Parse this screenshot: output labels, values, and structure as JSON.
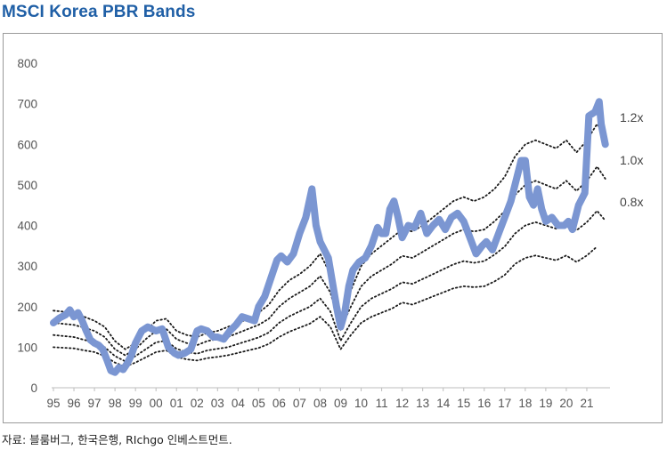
{
  "title": "MSCI Korea PBR Bands",
  "source": "자료: 블룸버그, 한국은행, RIchgo 인베스트먼트.",
  "chart_data": {
    "type": "line",
    "title": "MSCI Korea PBR Bands",
    "ylim": [
      0,
      800
    ],
    "yticks": [
      0,
      100,
      200,
      300,
      400,
      500,
      600,
      700,
      800
    ],
    "xlim": [
      1995,
      2022
    ],
    "xtick_labels": [
      "95",
      "96",
      "97",
      "98",
      "99",
      "00",
      "01",
      "02",
      "03",
      "04",
      "05",
      "06",
      "07",
      "08",
      "09",
      "10",
      "11",
      "12",
      "13",
      "14",
      "15",
      "16",
      "17",
      "18",
      "19",
      "20",
      "21"
    ],
    "grid": false,
    "colors": {
      "index": "#7b96d2",
      "band": "#1a1a1a"
    },
    "series": [
      {
        "name": "",
        "style": "thick-solid",
        "x": [
          1995.0,
          1995.3,
          1995.6,
          1995.8,
          1996.0,
          1996.2,
          1996.4,
          1996.6,
          1996.8,
          1997.0,
          1997.2,
          1997.4,
          1997.6,
          1997.8,
          1998.0,
          1998.2,
          1998.4,
          1998.6,
          1998.8,
          1999.0,
          1999.3,
          1999.6,
          1999.8,
          2000.0,
          2000.3,
          2000.6,
          2000.9,
          2001.1,
          2001.4,
          2001.7,
          2002.0,
          2002.2,
          2002.5,
          2002.8,
          2003.0,
          2003.3,
          2003.6,
          2003.9,
          2004.2,
          2004.5,
          2004.8,
          2005.0,
          2005.3,
          2005.6,
          2005.9,
          2006.1,
          2006.4,
          2006.7,
          2007.0,
          2007.3,
          2007.6,
          2007.8,
          2008.0,
          2008.2,
          2008.4,
          2008.6,
          2008.8,
          2009.0,
          2009.2,
          2009.4,
          2009.6,
          2009.9,
          2010.2,
          2010.5,
          2010.8,
          2011.0,
          2011.2,
          2011.4,
          2011.6,
          2011.8,
          2012.0,
          2012.3,
          2012.6,
          2012.9,
          2013.2,
          2013.5,
          2013.8,
          2014.1,
          2014.4,
          2014.7,
          2015.0,
          2015.3,
          2015.6,
          2015.9,
          2016.1,
          2016.4,
          2016.7,
          2017.0,
          2017.3,
          2017.6,
          2017.8,
          2018.0,
          2018.2,
          2018.4,
          2018.6,
          2018.8,
          2019.0,
          2019.3,
          2019.6,
          2019.9,
          2020.1,
          2020.3,
          2020.6,
          2020.9,
          2021.1,
          2021.4,
          2021.6,
          2021.7,
          2021.9
        ],
        "y": [
          160,
          172,
          180,
          192,
          175,
          185,
          165,
          140,
          118,
          110,
          105,
          95,
          70,
          42,
          38,
          50,
          45,
          60,
          80,
          110,
          140,
          150,
          145,
          140,
          145,
          100,
          85,
          80,
          85,
          95,
          140,
          145,
          140,
          125,
          125,
          120,
          140,
          155,
          175,
          170,
          165,
          200,
          225,
          270,
          315,
          325,
          310,
          330,
          380,
          420,
          490,
          400,
          360,
          340,
          320,
          260,
          200,
          150,
          185,
          250,
          290,
          310,
          320,
          350,
          395,
          380,
          380,
          440,
          460,
          420,
          370,
          400,
          395,
          430,
          380,
          400,
          415,
          390,
          420,
          430,
          410,
          370,
          330,
          350,
          360,
          340,
          380,
          420,
          460,
          520,
          560,
          560,
          470,
          450,
          490,
          440,
          410,
          420,
          400,
          400,
          410,
          390,
          450,
          480,
          670,
          680,
          705,
          650,
          600
        ]
      },
      {
        "name": "1.2x",
        "style": "dotted",
        "x": [
          1995.0,
          1996.0,
          1996.5,
          1997.0,
          1997.5,
          1998.0,
          1998.5,
          1999.0,
          1999.5,
          2000.0,
          2000.5,
          2001.0,
          2001.5,
          2002.0,
          2002.5,
          2003.0,
          2003.5,
          2004.0,
          2004.5,
          2005.0,
          2005.5,
          2006.0,
          2006.5,
          2007.0,
          2007.5,
          2008.0,
          2008.5,
          2009.0,
          2009.5,
          2010.0,
          2010.5,
          2011.0,
          2011.5,
          2012.0,
          2012.5,
          2013.0,
          2013.5,
          2014.0,
          2014.5,
          2015.0,
          2015.5,
          2016.0,
          2016.5,
          2017.0,
          2017.5,
          2018.0,
          2018.5,
          2019.0,
          2019.5,
          2020.0,
          2020.5,
          2021.0,
          2021.5,
          2021.9
        ],
        "y": [
          190,
          185,
          175,
          165,
          150,
          115,
          95,
          110,
          140,
          165,
          170,
          140,
          130,
          125,
          135,
          140,
          150,
          160,
          170,
          185,
          205,
          240,
          265,
          280,
          300,
          330,
          280,
          170,
          240,
          300,
          330,
          350,
          370,
          390,
          385,
          400,
          420,
          440,
          460,
          470,
          460,
          470,
          490,
          520,
          570,
          600,
          610,
          600,
          590,
          610,
          580,
          610,
          650,
          620
        ]
      },
      {
        "name": "1.0x",
        "style": "dotted",
        "x": [
          1995.0,
          1996.0,
          1996.5,
          1997.0,
          1997.5,
          1998.0,
          1998.5,
          1999.0,
          1999.5,
          2000.0,
          2000.5,
          2001.0,
          2001.5,
          2002.0,
          2002.5,
          2003.0,
          2003.5,
          2004.0,
          2004.5,
          2005.0,
          2005.5,
          2006.0,
          2006.5,
          2007.0,
          2007.5,
          2008.0,
          2008.5,
          2009.0,
          2009.5,
          2010.0,
          2010.5,
          2011.0,
          2011.5,
          2012.0,
          2012.5,
          2013.0,
          2013.5,
          2014.0,
          2014.5,
          2015.0,
          2015.5,
          2016.0,
          2016.5,
          2017.0,
          2017.5,
          2018.0,
          2018.5,
          2019.0,
          2019.5,
          2020.0,
          2020.5,
          2021.0,
          2021.5,
          2021.9
        ],
        "y": [
          160,
          155,
          148,
          140,
          125,
          95,
          80,
          95,
          120,
          140,
          145,
          120,
          110,
          105,
          115,
          120,
          125,
          135,
          145,
          155,
          170,
          200,
          220,
          235,
          250,
          275,
          235,
          145,
          200,
          250,
          275,
          290,
          305,
          325,
          320,
          335,
          350,
          365,
          380,
          390,
          385,
          390,
          410,
          435,
          475,
          500,
          510,
          500,
          490,
          510,
          485,
          510,
          545,
          515
        ]
      },
      {
        "name": "0.8x",
        "style": "dotted",
        "x": [
          1995.0,
          1996.0,
          1996.5,
          1997.0,
          1997.5,
          1998.0,
          1998.5,
          1999.0,
          1999.5,
          2000.0,
          2000.5,
          2001.0,
          2001.5,
          2002.0,
          2002.5,
          2003.0,
          2003.5,
          2004.0,
          2004.5,
          2005.0,
          2005.5,
          2006.0,
          2006.5,
          2007.0,
          2007.5,
          2008.0,
          2008.5,
          2009.0,
          2009.5,
          2010.0,
          2010.5,
          2011.0,
          2011.5,
          2012.0,
          2012.5,
          2013.0,
          2013.5,
          2014.0,
          2014.5,
          2015.0,
          2015.5,
          2016.0,
          2016.5,
          2017.0,
          2017.5,
          2018.0,
          2018.5,
          2019.0,
          2019.5,
          2020.0,
          2020.5,
          2021.0,
          2021.5,
          2021.9
        ],
        "y": [
          130,
          125,
          118,
          112,
          100,
          78,
          65,
          78,
          95,
          112,
          116,
          96,
          88,
          84,
          92,
          96,
          100,
          108,
          116,
          124,
          136,
          160,
          176,
          188,
          200,
          220,
          188,
          116,
          160,
          200,
          220,
          232,
          244,
          260,
          256,
          268,
          280,
          292,
          304,
          312,
          308,
          312,
          328,
          348,
          380,
          400,
          408,
          400,
          392,
          408,
          388,
          408,
          436,
          412
        ]
      },
      {
        "name": "",
        "style": "dotted",
        "x": [
          1995.0,
          1996.0,
          1996.5,
          1997.0,
          1997.5,
          1998.0,
          1998.5,
          1999.0,
          1999.5,
          2000.0,
          2000.5,
          2001.0,
          2001.5,
          2002.0,
          2002.5,
          2003.0,
          2003.5,
          2004.0,
          2004.5,
          2005.0,
          2005.5,
          2006.0,
          2006.5,
          2007.0,
          2007.5,
          2008.0,
          2008.5,
          2009.0,
          2009.5,
          2010.0,
          2010.5,
          2011.0,
          2011.5,
          2012.0,
          2012.5,
          2013.0,
          2013.5,
          2014.0,
          2014.5,
          2015.0,
          2015.5,
          2016.0,
          2016.5,
          2017.0,
          2017.5,
          2018.0,
          2018.5,
          2019.0,
          2019.5,
          2020.0,
          2020.5,
          2021.0,
          2021.5
        ],
        "y": [
          100,
          97,
          92,
          88,
          78,
          62,
          52,
          62,
          75,
          88,
          92,
          76,
          70,
          67,
          73,
          76,
          80,
          86,
          92,
          98,
          108,
          125,
          138,
          148,
          158,
          175,
          150,
          95,
          130,
          160,
          175,
          185,
          195,
          210,
          205,
          215,
          225,
          235,
          245,
          250,
          248,
          250,
          262,
          278,
          305,
          320,
          326,
          320,
          314,
          326,
          310,
          326,
          348
        ]
      }
    ],
    "band_labels": [
      "1.2x",
      "1.0x",
      "0.8x"
    ]
  }
}
